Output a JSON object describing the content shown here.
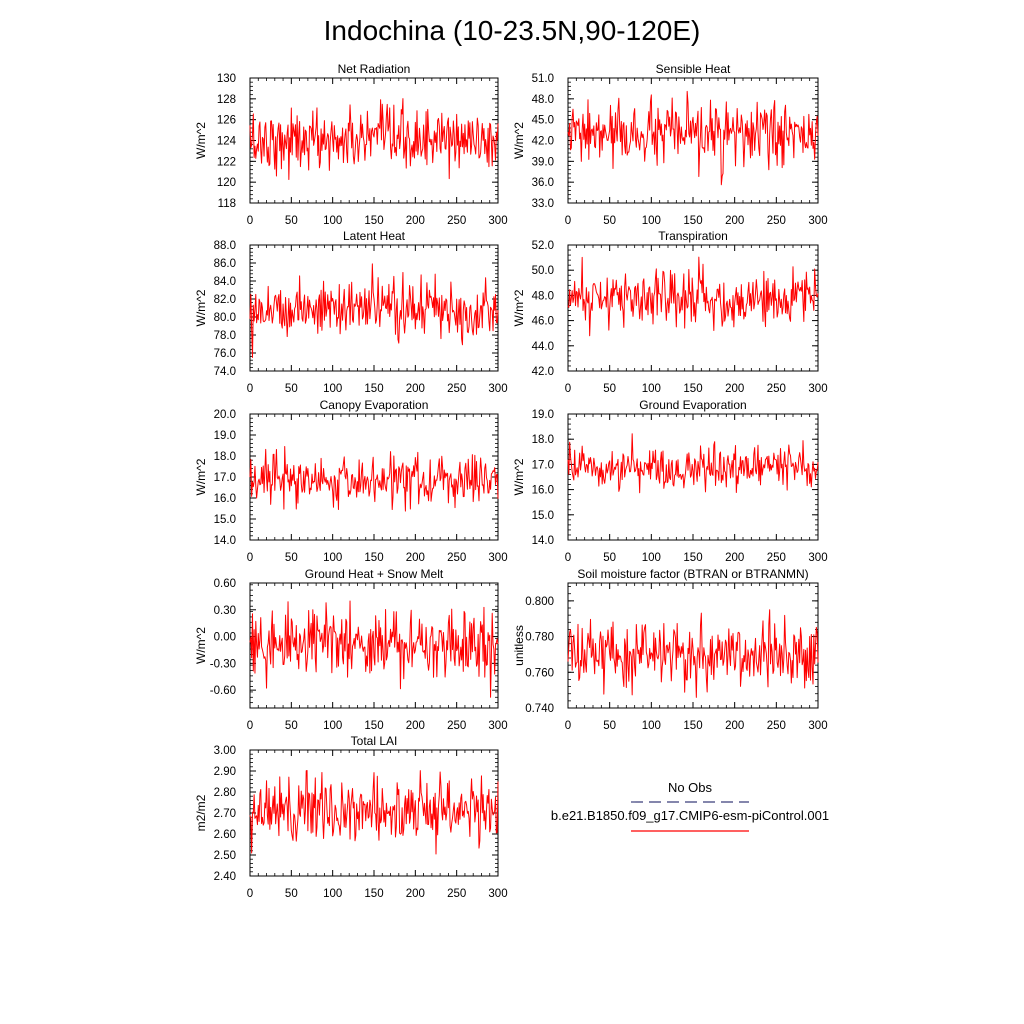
{
  "figure": {
    "title": "Indochina (10-23.5N,90-120E)"
  },
  "legend": {
    "obs_label": "No Obs",
    "obs_color": "#3a3f7a",
    "model_label": "b.e21.B1850.f09_g17.CMIP6-esm-piControl.001",
    "model_color": "#ff0000"
  },
  "chart_data": [
    {
      "type": "line",
      "title": "Net Radiation",
      "ylabel": "W/m^2",
      "xlim": [
        0,
        300
      ],
      "ylim": [
        118,
        130
      ],
      "xticks": [
        "0",
        "50",
        "100",
        "150",
        "200",
        "250",
        "300"
      ],
      "yticks": [
        "118",
        "120",
        "122",
        "124",
        "126",
        "128",
        "130"
      ],
      "series": [
        {
          "name": "b.e21.B1850.f09_g17.CMIP6-esm-piControl.001",
          "color": "#ff0000",
          "mean": 124.0,
          "sd": 1.5,
          "min": 118.8,
          "max": 129.4,
          "n": 301
        }
      ]
    },
    {
      "type": "line",
      "title": "Sensible Heat",
      "ylabel": "W/m^2",
      "xlim": [
        0,
        300
      ],
      "ylim": [
        33,
        51
      ],
      "xticks": [
        "0",
        "50",
        "100",
        "150",
        "200",
        "250",
        "300"
      ],
      "yticks": [
        "33.0",
        "36.0",
        "39.0",
        "42.0",
        "45.0",
        "48.0",
        "51.0"
      ],
      "series": [
        {
          "name": "b.e21.B1850.f09_g17.CMIP6-esm-piControl.001",
          "color": "#ff0000",
          "mean": 42.8,
          "sd": 2.2,
          "min": 35.4,
          "max": 49.1,
          "n": 301
        }
      ]
    },
    {
      "type": "line",
      "title": "Latent Heat",
      "ylabel": "W/m^2",
      "xlim": [
        0,
        300
      ],
      "ylim": [
        74,
        88
      ],
      "xticks": [
        "0",
        "50",
        "100",
        "150",
        "200",
        "250",
        "300"
      ],
      "yticks": [
        "74.0",
        "76.0",
        "78.0",
        "80.0",
        "82.0",
        "84.0",
        "86.0",
        "88.0"
      ],
      "series": [
        {
          "name": "b.e21.B1850.f09_g17.CMIP6-esm-piControl.001",
          "color": "#ff0000",
          "mean": 81.0,
          "sd": 1.6,
          "min": 75.5,
          "max": 86.4,
          "n": 301
        }
      ]
    },
    {
      "type": "line",
      "title": "Transpiration",
      "ylabel": "W/m^2",
      "xlim": [
        0,
        300
      ],
      "ylim": [
        42,
        52
      ],
      "xticks": [
        "0",
        "50",
        "100",
        "150",
        "200",
        "250",
        "300"
      ],
      "yticks": [
        "42.0",
        "44.0",
        "46.0",
        "48.0",
        "50.0",
        "52.0"
      ],
      "series": [
        {
          "name": "b.e21.B1850.f09_g17.CMIP6-esm-piControl.001",
          "color": "#ff0000",
          "mean": 47.8,
          "sd": 1.1,
          "min": 44.0,
          "max": 51.2,
          "n": 301
        }
      ]
    },
    {
      "type": "line",
      "title": "Canopy Evaporation",
      "ylabel": "W/m^2",
      "xlim": [
        0,
        300
      ],
      "ylim": [
        14,
        20
      ],
      "xticks": [
        "0",
        "50",
        "100",
        "150",
        "200",
        "250",
        "300"
      ],
      "yticks": [
        "14.0",
        "15.0",
        "16.0",
        "17.0",
        "18.0",
        "19.0",
        "20.0"
      ],
      "series": [
        {
          "name": "b.e21.B1850.f09_g17.CMIP6-esm-piControl.001",
          "color": "#ff0000",
          "mean": 16.8,
          "sd": 0.6,
          "min": 14.7,
          "max": 19.1,
          "n": 301
        }
      ]
    },
    {
      "type": "line",
      "title": "Ground Evaporation",
      "ylabel": "W/m^2",
      "xlim": [
        0,
        300
      ],
      "ylim": [
        14,
        19
      ],
      "xticks": [
        "0",
        "50",
        "100",
        "150",
        "200",
        "250",
        "300"
      ],
      "yticks": [
        "14.0",
        "15.0",
        "16.0",
        "17.0",
        "18.0",
        "19.0"
      ],
      "series": [
        {
          "name": "b.e21.B1850.f09_g17.CMIP6-esm-piControl.001",
          "color": "#ff0000",
          "mean": 16.9,
          "sd": 0.45,
          "min": 15.0,
          "max": 18.5,
          "n": 301
        }
      ]
    },
    {
      "type": "line",
      "title": "Ground Heat + Snow Melt",
      "ylabel": "W/m^2",
      "xlim": [
        0,
        300
      ],
      "ylim": [
        -0.8,
        0.6
      ],
      "yrange_note": "axis from about -0.80 to 0.60",
      "xticks": [
        "0",
        "50",
        "100",
        "150",
        "200",
        "250",
        "300"
      ],
      "yticks": [
        "-0.60",
        "-0.30",
        "0.00",
        "0.30",
        "0.60"
      ],
      "yticks_values": [
        -0.6,
        -0.3,
        0.0,
        0.3,
        0.6
      ],
      "series": [
        {
          "name": "b.e21.B1850.f09_g17.CMIP6-esm-piControl.001",
          "color": "#ff0000",
          "mean": -0.08,
          "sd": 0.2,
          "min": -0.68,
          "max": 0.48,
          "n": 301
        }
      ]
    },
    {
      "type": "line",
      "title": "Soil moisture factor (BTRAN or BTRANMN)",
      "ylabel": "unitless",
      "xlim": [
        0,
        300
      ],
      "ylim": [
        0.74,
        0.81
      ],
      "xticks": [
        "0",
        "50",
        "100",
        "150",
        "200",
        "250",
        "300"
      ],
      "yticks": [
        "0.740",
        "0.760",
        "0.780",
        "0.800"
      ],
      "yticks_values": [
        0.74,
        0.76,
        0.78,
        0.8
      ],
      "series": [
        {
          "name": "b.e21.B1850.f09_g17.CMIP6-esm-piControl.001",
          "color": "#ff0000",
          "mean": 0.77,
          "sd": 0.009,
          "min": 0.745,
          "max": 0.808,
          "n": 301
        }
      ]
    },
    {
      "type": "line",
      "title": "Total LAI",
      "ylabel": "m2/m2",
      "xlim": [
        0,
        300
      ],
      "ylim": [
        2.4,
        3.0
      ],
      "xticks": [
        "0",
        "50",
        "100",
        "150",
        "200",
        "250",
        "300"
      ],
      "yticks": [
        "2.40",
        "2.50",
        "2.60",
        "2.70",
        "2.80",
        "2.90",
        "3.00"
      ],
      "series": [
        {
          "name": "b.e21.B1850.f09_g17.CMIP6-esm-piControl.001",
          "color": "#ff0000",
          "mean": 2.71,
          "sd": 0.08,
          "min": 2.47,
          "max": 2.94,
          "n": 301
        }
      ]
    }
  ]
}
